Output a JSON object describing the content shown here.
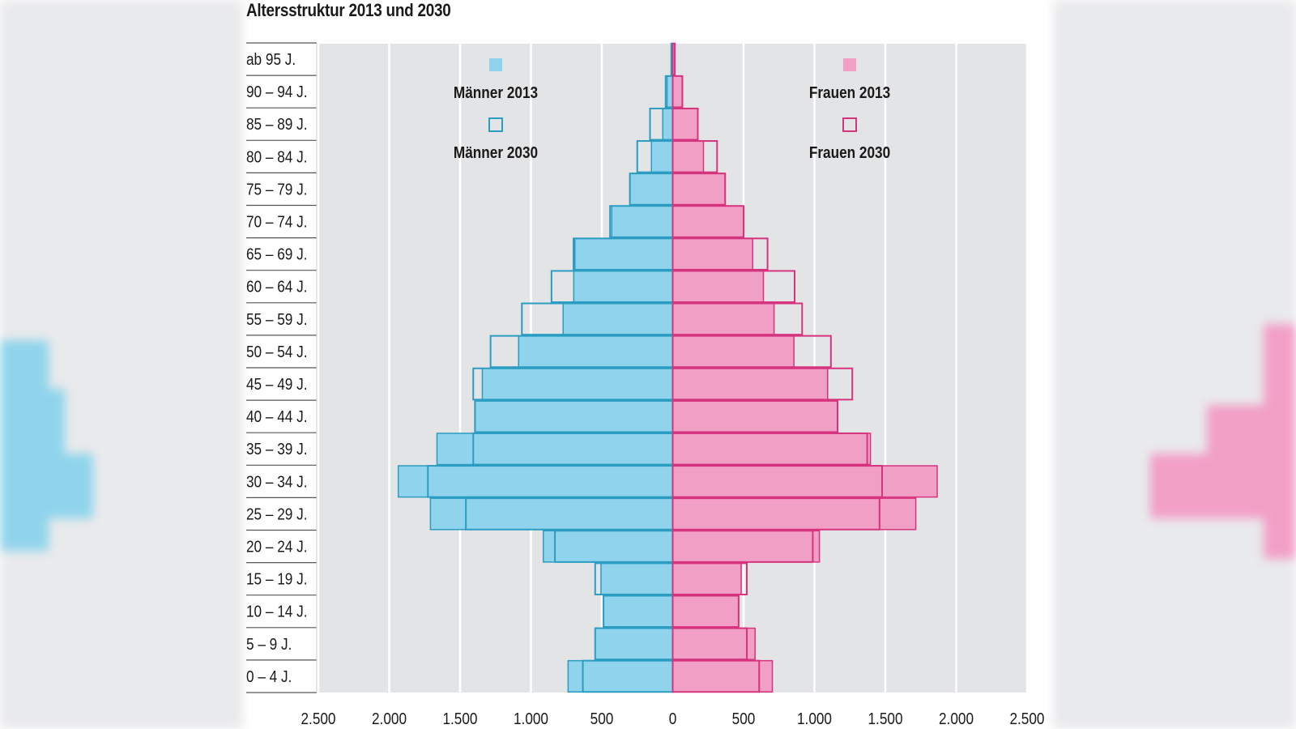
{
  "chart_data": {
    "type": "bar",
    "orientation": "horizontal-pyramid",
    "title": "Altersstruktur 2013 und 2030",
    "categories": [
      "ab 95 J.",
      "90 – 94 J.",
      "85 – 89 J.",
      "80 – 84 J.",
      "75 – 79 J.",
      "70 – 74 J.",
      "65 – 69 J.",
      "60 – 64 J.",
      "55 – 59 J.",
      "50 – 54 J.",
      "45 – 49 J.",
      "40 – 44 J.",
      "35 – 39 J.",
      "30 – 34 J.",
      "25 – 29 J.",
      "20 – 24 J.",
      "15 – 19 J.",
      "10 – 14 J.",
      "5 – 9 J.",
      "0 – 4 J."
    ],
    "series": [
      {
        "name": "Männer 2013",
        "side": "left",
        "style": "filled",
        "color": "#8fd4ec",
        "edge": "#2b9cc2",
        "values": [
          10,
          40,
          70,
          150,
          302,
          430,
          690,
          698,
          773,
          1087,
          1343,
          1395,
          1663,
          1936,
          1709,
          913,
          506,
          488,
          547,
          738
        ]
      },
      {
        "name": "Männer 2030",
        "side": "left",
        "style": "outline",
        "color": "#2b9cc2",
        "values": [
          10,
          50,
          160,
          250,
          302,
          442,
          700,
          855,
          1064,
          1285,
          1407,
          1395,
          1407,
          1727,
          1459,
          831,
          547,
          488,
          547,
          634
        ]
      },
      {
        "name": "Frauen 2013",
        "side": "right",
        "style": "filled",
        "color": "#f29fc6",
        "edge": "#d6337f",
        "values": [
          15,
          68,
          177,
          217,
          370,
          500,
          564,
          640,
          715,
          855,
          1093,
          1163,
          1395,
          1866,
          1715,
          1035,
          483,
          465,
          581,
          703
        ]
      },
      {
        "name": "Frauen 2030",
        "side": "right",
        "style": "outline",
        "color": "#d6337f",
        "values": [
          15,
          68,
          177,
          313,
          370,
          500,
          669,
          860,
          913,
          1116,
          1267,
          1163,
          1372,
          1477,
          1459,
          988,
          523,
          465,
          523,
          610
        ]
      }
    ],
    "xlim": [
      -2500,
      2500
    ],
    "xticks": [
      -2500,
      -2000,
      -1500,
      -1000,
      -500,
      0,
      500,
      1000,
      1500,
      2000,
      2500
    ],
    "xtick_labels": [
      "2.500",
      "2.000",
      "1.500",
      "1.000",
      "500",
      "0",
      "500",
      "1.000",
      "1.500",
      "2.000",
      "2.500"
    ],
    "grid": true,
    "legend_placement": "top, split left/right",
    "legend": {
      "men_2013": "Männer 2013",
      "men_2030": "Männer 2030",
      "women_2013": "Frauen 2013",
      "women_2030": "Frauen 2030"
    },
    "plot_background": "#e3e4e6"
  }
}
